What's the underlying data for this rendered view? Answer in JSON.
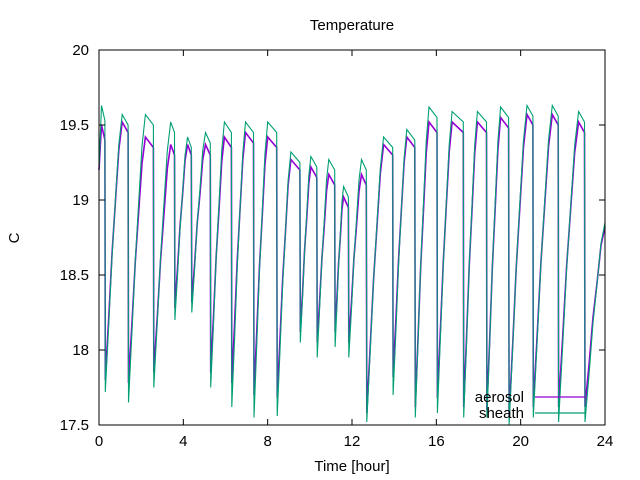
{
  "chart_data": {
    "type": "line",
    "title": "Temperature",
    "xlabel": "Time [hour]",
    "ylabel": "C",
    "xlim": [
      0,
      24
    ],
    "ylim": [
      17.5,
      20
    ],
    "xticks": [
      0,
      4,
      8,
      12,
      16,
      20,
      24
    ],
    "yticks": [
      17.5,
      18,
      18.5,
      19,
      19.5,
      20
    ],
    "ytick_labels": [
      "17.5",
      "18",
      "18.5",
      "19",
      "19.5",
      "20"
    ],
    "grid": false,
    "legend_position": "bottom-right",
    "series": [
      {
        "name": "aerosol",
        "color": "#9400d3",
        "cycles": [
          {
            "start": 0.0,
            "peak": 0.12,
            "max": 19.5,
            "min": 17.75
          },
          {
            "start": 0.3,
            "peak": 1.1,
            "max": 19.55,
            "min": 17.8
          },
          {
            "start": 1.4,
            "peak": 2.2,
            "max": 19.45,
            "min": 17.78
          },
          {
            "start": 2.6,
            "peak": 3.4,
            "max": 19.4,
            "min": 17.85
          },
          {
            "start": 3.6,
            "peak": 4.2,
            "max": 19.4,
            "min": 18.28
          },
          {
            "start": 4.4,
            "peak": 5.05,
            "max": 19.4,
            "min": 18.32
          },
          {
            "start": 5.3,
            "peak": 5.95,
            "max": 19.45,
            "min": 17.85
          },
          {
            "start": 6.3,
            "peak": 6.95,
            "max": 19.48,
            "min": 17.78
          },
          {
            "start": 7.35,
            "peak": 8.0,
            "max": 19.45,
            "min": 17.7
          },
          {
            "start": 8.45,
            "peak": 9.1,
            "max": 19.3,
            "min": 17.68
          },
          {
            "start": 9.55,
            "peak": 10.05,
            "max": 19.25,
            "min": 18.12
          },
          {
            "start": 10.35,
            "peak": 10.9,
            "max": 19.2,
            "min": 18.05
          },
          {
            "start": 11.2,
            "peak": 11.6,
            "max": 19.05,
            "min": 18.12
          },
          {
            "start": 11.85,
            "peak": 12.45,
            "max": 19.2,
            "min": 18.05
          },
          {
            "start": 12.7,
            "peak": 13.5,
            "max": 19.4,
            "min": 17.58
          },
          {
            "start": 13.95,
            "peak": 14.6,
            "max": 19.45,
            "min": 17.82
          },
          {
            "start": 15.0,
            "peak": 15.65,
            "max": 19.55,
            "min": 17.62
          },
          {
            "start": 16.05,
            "peak": 16.75,
            "max": 19.55,
            "min": 17.68
          },
          {
            "start": 17.3,
            "peak": 17.95,
            "max": 19.55,
            "min": 17.62
          },
          {
            "start": 18.4,
            "peak": 19.05,
            "max": 19.58,
            "min": 17.6
          },
          {
            "start": 19.45,
            "peak": 20.3,
            "max": 19.6,
            "min": 17.55
          },
          {
            "start": 20.6,
            "peak": 21.5,
            "max": 19.6,
            "min": 17.62
          },
          {
            "start": 21.8,
            "peak": 22.75,
            "max": 19.55,
            "min": 17.62
          },
          {
            "start": 23.05,
            "peak": 24.0,
            "max": 18.85,
            "min": 17.62
          }
        ]
      },
      {
        "name": "sheath",
        "color": "#009e73",
        "cycles": [
          {
            "start": 0.0,
            "peak": 0.12,
            "max": 19.63,
            "min": 17.62
          },
          {
            "start": 0.3,
            "peak": 1.1,
            "max": 19.6,
            "min": 17.72
          },
          {
            "start": 1.4,
            "peak": 2.2,
            "max": 19.6,
            "min": 17.65
          },
          {
            "start": 2.6,
            "peak": 3.4,
            "max": 19.55,
            "min": 17.75
          },
          {
            "start": 3.6,
            "peak": 4.2,
            "max": 19.45,
            "min": 18.2
          },
          {
            "start": 4.4,
            "peak": 5.05,
            "max": 19.48,
            "min": 18.25
          },
          {
            "start": 5.3,
            "peak": 5.95,
            "max": 19.55,
            "min": 17.75
          },
          {
            "start": 6.3,
            "peak": 6.95,
            "max": 19.55,
            "min": 17.62
          },
          {
            "start": 7.35,
            "peak": 8.0,
            "max": 19.55,
            "min": 17.55
          },
          {
            "start": 8.45,
            "peak": 9.1,
            "max": 19.35,
            "min": 17.56
          },
          {
            "start": 9.55,
            "peak": 10.05,
            "max": 19.32,
            "min": 18.05
          },
          {
            "start": 10.35,
            "peak": 10.9,
            "max": 19.3,
            "min": 17.95
          },
          {
            "start": 11.2,
            "peak": 11.6,
            "max": 19.12,
            "min": 18.02
          },
          {
            "start": 11.85,
            "peak": 12.45,
            "max": 19.3,
            "min": 17.95
          },
          {
            "start": 12.7,
            "peak": 13.5,
            "max": 19.45,
            "min": 17.52
          },
          {
            "start": 13.95,
            "peak": 14.6,
            "max": 19.5,
            "min": 17.7
          },
          {
            "start": 15.0,
            "peak": 15.65,
            "max": 19.65,
            "min": 17.55
          },
          {
            "start": 16.05,
            "peak": 16.75,
            "max": 19.62,
            "min": 17.58
          },
          {
            "start": 17.3,
            "peak": 17.95,
            "max": 19.62,
            "min": 17.55
          },
          {
            "start": 18.4,
            "peak": 19.05,
            "max": 19.65,
            "min": 17.55
          },
          {
            "start": 19.45,
            "peak": 20.3,
            "max": 19.66,
            "min": 17.5
          },
          {
            "start": 20.6,
            "peak": 21.5,
            "max": 19.66,
            "min": 17.55
          },
          {
            "start": 21.8,
            "peak": 22.75,
            "max": 19.62,
            "min": 17.52
          },
          {
            "start": 23.05,
            "peak": 24.0,
            "max": 18.88,
            "min": 17.52
          }
        ]
      }
    ]
  }
}
